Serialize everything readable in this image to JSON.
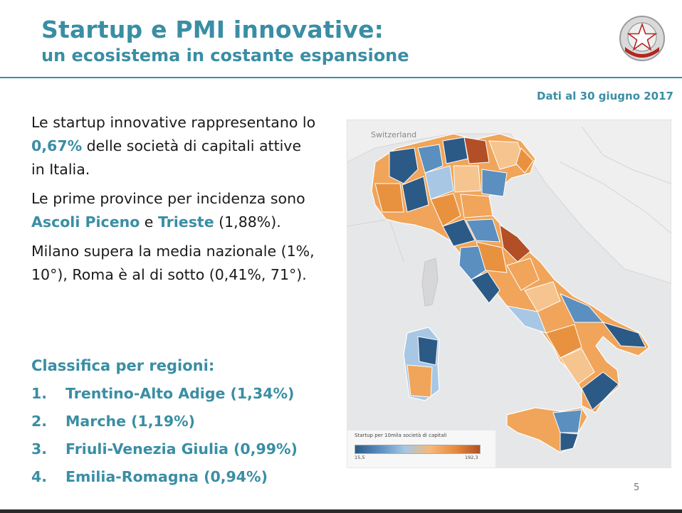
{
  "header": {
    "title": "Startup e PMI innovative:",
    "subtitle": "un ecosistema in costante espansione",
    "emblem_icon": "italian-republic-emblem-icon"
  },
  "date_note": "Dati al 30 giugno 2017",
  "body": {
    "p1_pre": "Le startup innovative rappresentano lo ",
    "p1_hl": "0,67%",
    "p1_post": " delle società di capitali attive in Italia.",
    "p2_pre": "Le prime province per incidenza sono ",
    "p2_hl1": "Ascoli Piceno",
    "p2_mid": " e ",
    "p2_hl2": "Trieste",
    "p2_post": " (1,88%).",
    "p3": "Milano supera la media nazionale (1%, 10°), Roma è al di sotto (0,41%, 71°)."
  },
  "ranking": {
    "title": "Classifica per regioni:",
    "items": [
      {
        "num": "1.",
        "label": "Trentino-Alto Adige (1,34%)"
      },
      {
        "num": "2.",
        "label": "Marche (1,19%)"
      },
      {
        "num": "3.",
        "label": "Friuli-Venezia Giulia (0,99%)"
      },
      {
        "num": "4.",
        "label": "Emilia-Romagna (0,94%)"
      }
    ]
  },
  "map": {
    "label_switzerland": "Switzerland",
    "legend_title": "Startup per 10mila società di capitali",
    "legend_min": "15,5",
    "legend_max": "192,3",
    "colors": {
      "dark_blue": "#2c5a86",
      "blue": "#5b8fc0",
      "light_blue": "#a7c7e4",
      "light_orange": "#f5c48f",
      "orange": "#e8923f",
      "dark_orange": "#b24f26"
    }
  },
  "page_number": "5",
  "colors": {
    "accent": "#3a8ea4"
  }
}
